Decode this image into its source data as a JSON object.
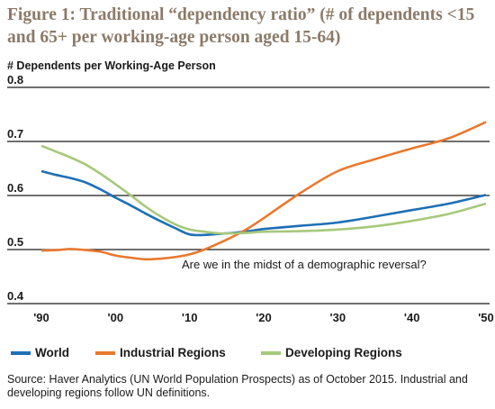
{
  "chart_data": {
    "type": "line",
    "title": "Figure 1: Traditional “dependency ratio” (# of dependents <15 and 65+ per working-age person aged 15-64)",
    "ylabel": "# Dependents per Working-Age Person",
    "ylim": [
      0.4,
      0.8
    ],
    "y_ticks": [
      "0.8",
      "0.7",
      "0.6",
      "0.5",
      "0.4"
    ],
    "y_tick_values": [
      0.8,
      0.7,
      0.6,
      0.5,
      0.4
    ],
    "xlim": [
      1990,
      2050
    ],
    "x_ticks": [
      "'90",
      "'00",
      "'10",
      "'20",
      "'30",
      "'40",
      "'50"
    ],
    "x_tick_values": [
      1990,
      2000,
      2010,
      2020,
      2030,
      2040,
      2050
    ],
    "grid": true,
    "legend_position": "bottom",
    "annotation": "Are we in the midst of a demographic reversal?",
    "series": [
      {
        "name": "World",
        "color": "#1f6fb5",
        "x": [
          1990,
          1992,
          1994,
          1996,
          1998,
          2000,
          2002,
          2004,
          2006,
          2008,
          2010,
          2012,
          2014,
          2016,
          2018,
          2020,
          2025,
          2030,
          2035,
          2040,
          2045,
          2050
        ],
        "y": [
          0.645,
          0.638,
          0.632,
          0.624,
          0.611,
          0.596,
          0.582,
          0.567,
          0.553,
          0.54,
          0.528,
          0.527,
          0.529,
          0.531,
          0.534,
          0.538,
          0.544,
          0.55,
          0.561,
          0.573,
          0.585,
          0.601
        ]
      },
      {
        "name": "Industrial Regions",
        "color": "#e8792f",
        "x": [
          1990,
          1992,
          1994,
          1996,
          1998,
          2000,
          2002,
          2004,
          2006,
          2008,
          2010,
          2012,
          2014,
          2016,
          2018,
          2020,
          2025,
          2030,
          2035,
          2040,
          2045,
          2050
        ],
        "y": [
          0.498,
          0.499,
          0.501,
          0.499,
          0.496,
          0.489,
          0.485,
          0.482,
          0.483,
          0.486,
          0.491,
          0.5,
          0.512,
          0.525,
          0.54,
          0.558,
          0.605,
          0.645,
          0.667,
          0.687,
          0.706,
          0.736
        ]
      },
      {
        "name": "Developing Regions",
        "color": "#a6c97b",
        "x": [
          1990,
          1992,
          1994,
          1996,
          1998,
          2000,
          2002,
          2004,
          2006,
          2008,
          2010,
          2012,
          2014,
          2016,
          2018,
          2020,
          2025,
          2030,
          2035,
          2040,
          2045,
          2050
        ],
        "y": [
          0.692,
          0.681,
          0.67,
          0.657,
          0.64,
          0.621,
          0.601,
          0.58,
          0.562,
          0.547,
          0.537,
          0.533,
          0.53,
          0.53,
          0.531,
          0.533,
          0.534,
          0.537,
          0.543,
          0.553,
          0.566,
          0.585
        ]
      }
    ]
  },
  "source_text": "Source: Haver Analytics (UN World Population Prospects) as of October 2015. Industrial and developing regions follow UN definitions."
}
